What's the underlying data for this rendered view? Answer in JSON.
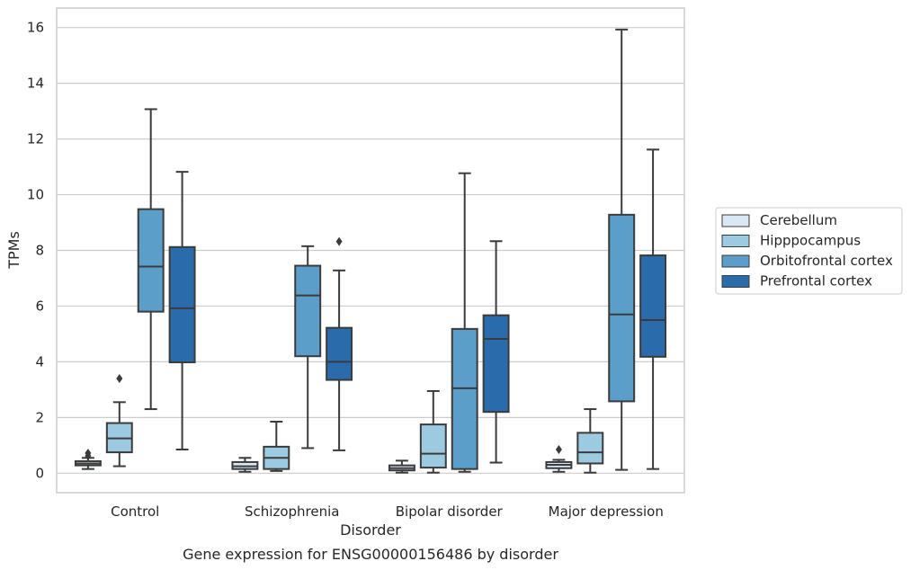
{
  "chart_data": {
    "type": "box",
    "title": "Gene expression for ENSG00000156486 by disorder",
    "xlabel": "Disorder",
    "ylabel": "TPMs",
    "ylim": [
      -0.7,
      16.7
    ],
    "yticks": [
      0,
      2,
      4,
      6,
      8,
      10,
      12,
      14,
      16
    ],
    "grid": "horizontal",
    "legend_position": "right",
    "categories": [
      "Control",
      "Schizophrenia",
      "Bipolar disorder",
      "Major depression"
    ],
    "series": [
      {
        "name": "Cerebellum",
        "color": "#d9e8f5",
        "boxes": [
          {
            "whislo": 0.15,
            "q1": 0.28,
            "med": 0.35,
            "q3": 0.43,
            "whishi": 0.55,
            "fliers": [
              0.72,
              0.62
            ]
          },
          {
            "whislo": 0.05,
            "q1": 0.15,
            "med": 0.25,
            "q3": 0.4,
            "whishi": 0.55,
            "fliers": []
          },
          {
            "whislo": 0.02,
            "q1": 0.1,
            "med": 0.18,
            "q3": 0.28,
            "whishi": 0.45,
            "fliers": []
          },
          {
            "whislo": 0.05,
            "q1": 0.18,
            "med": 0.3,
            "q3": 0.4,
            "whishi": 0.48,
            "fliers": [
              0.85
            ]
          }
        ]
      },
      {
        "name": "Hipppocampus",
        "color": "#9ccae1",
        "boxes": [
          {
            "whislo": 0.25,
            "q1": 0.75,
            "med": 1.25,
            "q3": 1.8,
            "whishi": 2.55,
            "fliers": [
              3.4
            ]
          },
          {
            "whislo": 0.08,
            "q1": 0.15,
            "med": 0.55,
            "q3": 0.95,
            "whishi": 1.85,
            "fliers": []
          },
          {
            "whislo": 0.02,
            "q1": 0.2,
            "med": 0.7,
            "q3": 1.75,
            "whishi": 2.95,
            "fliers": []
          },
          {
            "whislo": 0.02,
            "q1": 0.35,
            "med": 0.75,
            "q3": 1.45,
            "whishi": 2.3,
            "fliers": []
          }
        ]
      },
      {
        "name": "Orbitofrontal cortex",
        "color": "#5a9ec9",
        "boxes": [
          {
            "whislo": 2.3,
            "q1": 5.8,
            "med": 7.42,
            "q3": 9.48,
            "whishi": 13.07,
            "fliers": []
          },
          {
            "whislo": 0.9,
            "q1": 4.2,
            "med": 6.38,
            "q3": 7.45,
            "whishi": 8.15,
            "fliers": []
          },
          {
            "whislo": 0.05,
            "q1": 0.15,
            "med": 3.05,
            "q3": 5.18,
            "whishi": 10.77,
            "fliers": []
          },
          {
            "whislo": 0.12,
            "q1": 2.58,
            "med": 5.7,
            "q3": 9.28,
            "whishi": 15.93,
            "fliers": []
          }
        ]
      },
      {
        "name": "Prefrontal cortex",
        "color": "#2a6bab",
        "boxes": [
          {
            "whislo": 0.85,
            "q1": 3.98,
            "med": 5.92,
            "q3": 8.12,
            "whishi": 10.82,
            "fliers": []
          },
          {
            "whislo": 0.82,
            "q1": 3.35,
            "med": 4.0,
            "q3": 5.22,
            "whishi": 7.28,
            "fliers": [
              8.32
            ]
          },
          {
            "whislo": 0.38,
            "q1": 2.2,
            "med": 4.82,
            "q3": 5.67,
            "whishi": 8.33,
            "fliers": []
          },
          {
            "whislo": 0.15,
            "q1": 4.18,
            "med": 5.5,
            "q3": 7.82,
            "whishi": 11.62,
            "fliers": []
          }
        ]
      }
    ]
  }
}
